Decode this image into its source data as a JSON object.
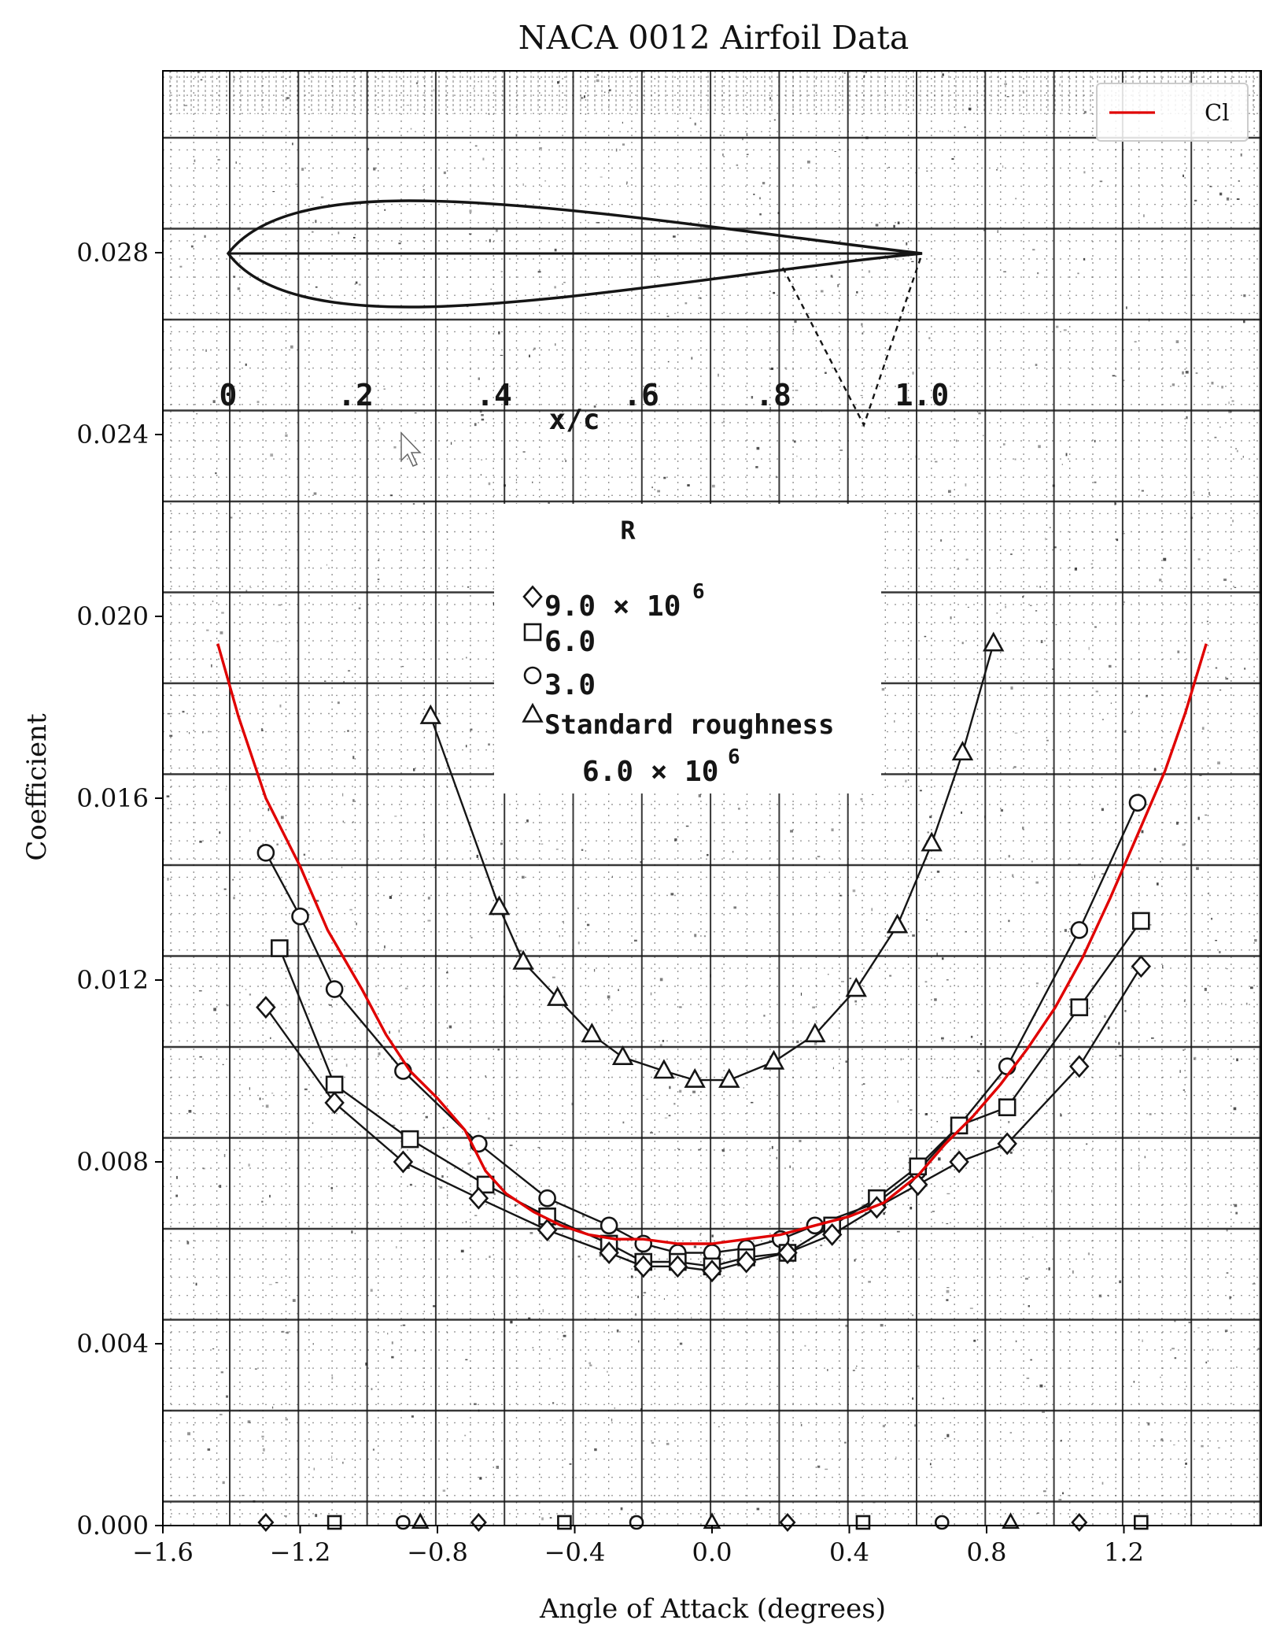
{
  "chart_data": {
    "type": "line",
    "title": "NACA 0012 Airfoil Data",
    "xlabel": "Angle of Attack (degrees)",
    "ylabel": "Coefficient",
    "xlim": [
      -1.6,
      1.6
    ],
    "ylim": [
      0.0,
      0.032
    ],
    "x_ticks": [
      -1.6,
      -1.2,
      -0.8,
      -0.4,
      0.0,
      0.4,
      0.8,
      1.2
    ],
    "x_tick_labels": [
      "−1.6",
      "−1.2",
      "−0.8",
      "−0.4",
      "0.0",
      "0.4",
      "0.8",
      "1.2"
    ],
    "y_ticks": [
      0.0,
      0.004,
      0.008,
      0.012,
      0.016,
      0.02,
      0.024,
      0.028
    ],
    "y_tick_labels": [
      "0.000",
      "0.004",
      "0.008",
      "0.012",
      "0.016",
      "0.020",
      "0.024",
      "0.028"
    ],
    "grid": true,
    "legend_position": "top-right",
    "colors": {
      "cl_line": "#e00000",
      "scan_ink": "#151515",
      "scan_grid": "#3a3a3a"
    },
    "series": [
      {
        "name": "Cl",
        "x": [
          -1.44,
          -1.38,
          -1.3,
          -1.2,
          -1.12,
          -1.02,
          -0.95,
          -0.88,
          -0.8,
          -0.72,
          -0.66,
          -0.6,
          -0.52,
          -0.44,
          -0.36,
          -0.28,
          -0.2,
          -0.1,
          0.0,
          0.1,
          0.2,
          0.3,
          0.4,
          0.5,
          0.6,
          0.68,
          0.76,
          0.84,
          0.92,
          1.0,
          1.08,
          1.16,
          1.24,
          1.32,
          1.38,
          1.44
        ],
        "y": [
          0.0194,
          0.0178,
          0.016,
          0.0145,
          0.0131,
          0.0118,
          0.0108,
          0.01,
          0.0094,
          0.0087,
          0.0078,
          0.0073,
          0.0069,
          0.0066,
          0.0064,
          0.0063,
          0.0063,
          0.0062,
          0.0062,
          0.0063,
          0.0064,
          0.0066,
          0.0068,
          0.0071,
          0.0077,
          0.0084,
          0.009,
          0.0097,
          0.0105,
          0.0114,
          0.0125,
          0.0138,
          0.0152,
          0.0166,
          0.0179,
          0.0194
        ]
      }
    ]
  },
  "scan_overlay": {
    "xc_ticks": [
      "0",
      ".2",
      ".4",
      ".6",
      ".8",
      "1.0"
    ],
    "xc_label": "x/c",
    "legend_heading": "R",
    "legend_rows": [
      "9.0 × 10",
      "6.0",
      "3.0",
      "Standard roughness",
      "6.0 × 10"
    ],
    "exponent": "6",
    "curves": [
      {
        "name": "roughness",
        "marker": "triangle",
        "x": [
          -0.82,
          -0.62,
          -0.55,
          -0.45,
          -0.35,
          -0.26,
          -0.14,
          -0.05,
          0.05,
          0.18,
          0.3,
          0.42,
          0.54,
          0.64,
          0.73,
          0.82
        ],
        "y": [
          0.0178,
          0.0136,
          0.0124,
          0.0116,
          0.0108,
          0.0103,
          0.01,
          0.0098,
          0.0098,
          0.0102,
          0.0108,
          0.0118,
          0.0132,
          0.015,
          0.017,
          0.0194
        ]
      },
      {
        "name": "R=3.0",
        "marker": "circle",
        "x": [
          -1.3,
          -1.2,
          -1.1,
          -0.9,
          -0.68,
          -0.48,
          -0.3,
          -0.2,
          -0.1,
          0.0,
          0.1,
          0.2,
          0.3,
          0.48,
          0.6,
          0.72,
          0.86,
          1.07,
          1.24
        ],
        "y": [
          0.0148,
          0.0134,
          0.0118,
          0.01,
          0.0084,
          0.0072,
          0.0066,
          0.0062,
          0.006,
          0.006,
          0.0061,
          0.0063,
          0.0066,
          0.0071,
          0.0078,
          0.0088,
          0.0101,
          0.0131,
          0.0159
        ]
      },
      {
        "name": "R=6.0",
        "marker": "square",
        "x": [
          -1.26,
          -1.1,
          -0.88,
          -0.66,
          -0.48,
          -0.3,
          -0.2,
          -0.1,
          0.0,
          0.1,
          0.22,
          0.35,
          0.48,
          0.6,
          0.72,
          0.86,
          1.07,
          1.25
        ],
        "y": [
          0.0127,
          0.0097,
          0.0085,
          0.0075,
          0.0068,
          0.0062,
          0.0058,
          0.0058,
          0.0057,
          0.0059,
          0.006,
          0.0066,
          0.0072,
          0.0079,
          0.0088,
          0.0092,
          0.0114,
          0.0133
        ]
      },
      {
        "name": "R=9.0",
        "marker": "diamond",
        "x": [
          -1.3,
          -1.1,
          -0.9,
          -0.68,
          -0.48,
          -0.3,
          -0.2,
          -0.1,
          0.0,
          0.1,
          0.22,
          0.35,
          0.48,
          0.6,
          0.72,
          0.86,
          1.07,
          1.25
        ],
        "y": [
          0.0114,
          0.0093,
          0.008,
          0.0072,
          0.0065,
          0.006,
          0.0057,
          0.0057,
          0.0056,
          0.0058,
          0.006,
          0.0064,
          0.007,
          0.0075,
          0.008,
          0.0084,
          0.0101,
          0.0123
        ]
      }
    ]
  }
}
